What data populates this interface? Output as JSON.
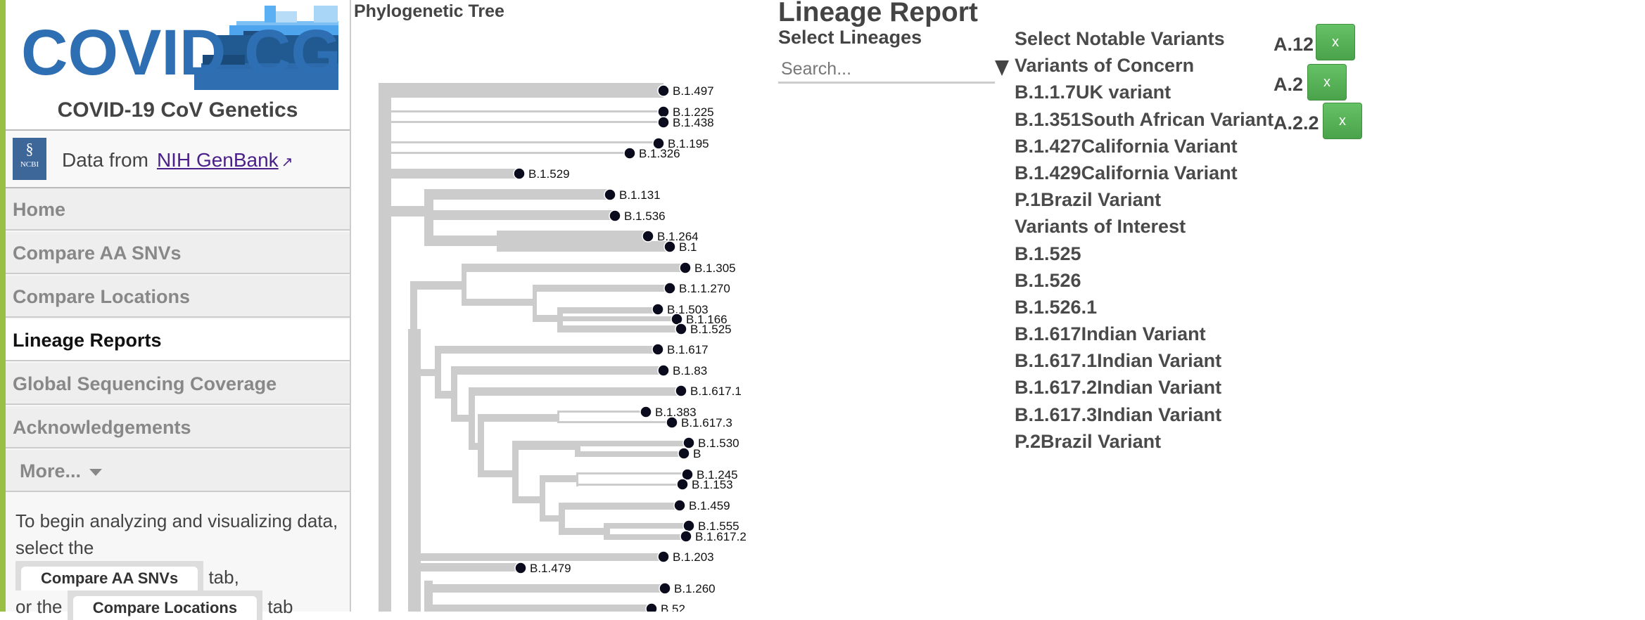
{
  "sidebar": {
    "logo_text": "COVID CG",
    "subtitle": "COVID-19 CoV Genetics",
    "ncbi_logo": "NCBI",
    "data_from": "Data from",
    "data_link": "NIH GenBank",
    "nav": [
      {
        "label": "Home",
        "active": false
      },
      {
        "label": "Compare AA SNVs",
        "active": false
      },
      {
        "label": "Compare Locations",
        "active": false
      },
      {
        "label": "Lineage Reports",
        "active": true
      },
      {
        "label": "Global Sequencing Coverage",
        "active": false
      },
      {
        "label": "Acknowledgements",
        "active": false
      },
      {
        "label": "More...",
        "active": false
      }
    ],
    "info": {
      "line1": "To begin analyzing and visualizing data, select the",
      "btn1": "Compare AA SNVs",
      "after1": "tab,",
      "line2": "or the",
      "btn2": "Compare Locations",
      "after2": "tab"
    }
  },
  "tree": {
    "title": "Phylogenetic Tree",
    "leaves": [
      "B.1.497",
      "B.1.225",
      "B.1.438",
      "B.1.195",
      "B.1.326",
      "B.1.529",
      "B.1.131",
      "B.1.536",
      "B.1.264",
      "B.1",
      "B.1.305",
      "B.1.1.270",
      "B.1.503",
      "B.1.166",
      "B.1.525",
      "B.1.617",
      "B.1.83",
      "B.1.617.1",
      "B.1.383",
      "B.1.617.3",
      "B.1.530",
      "B",
      "B.1.245",
      "B.1.153",
      "B.1.459",
      "B.1.555",
      "B.1.617.2",
      "B.1.203",
      "B.1.479",
      "B.1.260",
      "B.52"
    ],
    "branch_color": "#cccccc",
    "node_color": "#0b0b1e"
  },
  "report": {
    "title": "Lineage Report",
    "select_lineages": "Select Lineages",
    "search_placeholder": "Search...",
    "notable_title": "Select Notable Variants",
    "variants": [
      "Variants of Concern",
      "B.1.1.7UK variant",
      "B.1.351South African Variant",
      "B.1.427California Variant",
      "B.1.429California Variant",
      "P.1Brazil Variant",
      "Variants of Interest",
      "B.1.525",
      "B.1.526",
      "B.1.526.1",
      "B.1.617Indian Variant",
      "B.1.617.1Indian Variant",
      "B.1.617.2Indian Variant",
      "B.1.617.3Indian Variant",
      "P.2Brazil Variant"
    ],
    "selected": [
      "A.12",
      "A.2",
      "A.2.2"
    ],
    "remove_label": "x",
    "accent": "#55b055"
  }
}
